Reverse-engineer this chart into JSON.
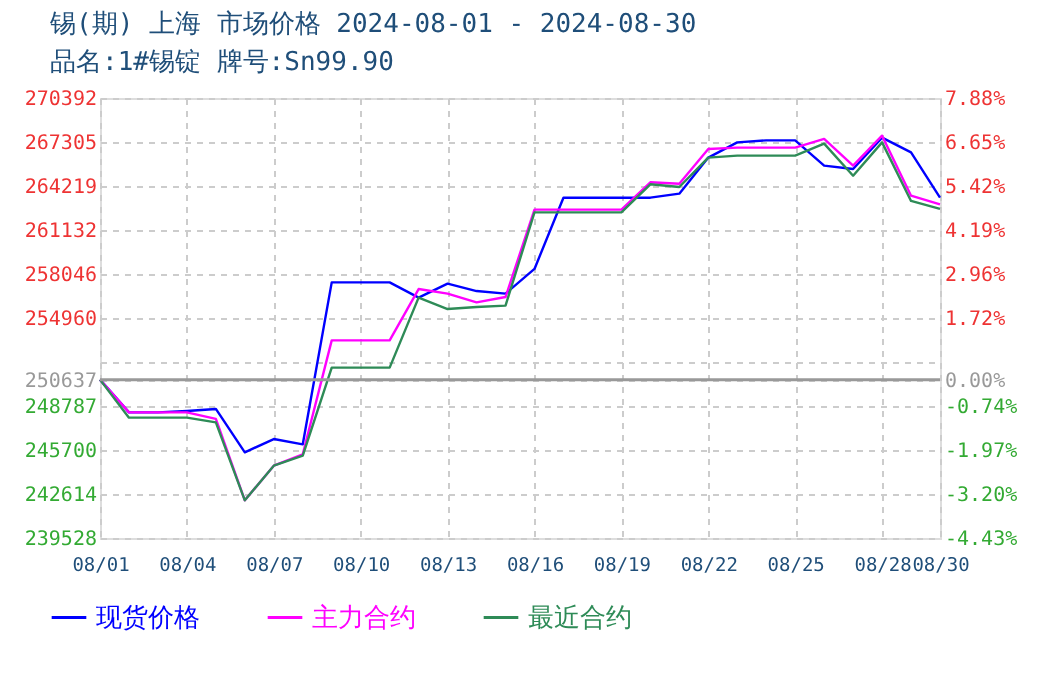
{
  "chart_data": {
    "type": "line",
    "title": "锡(期) 上海 市场价格 2024-08-01 - 2024-08-30",
    "subtitle": "品名:1#锡锭 牌号:Sn99.90",
    "x": [
      "2024-08-01",
      "2024-08-02",
      "2024-08-03",
      "2024-08-04",
      "2024-08-05",
      "2024-08-06",
      "2024-08-07",
      "2024-08-08",
      "2024-08-09",
      "2024-08-10",
      "2024-08-11",
      "2024-08-12",
      "2024-08-13",
      "2024-08-14",
      "2024-08-15",
      "2024-08-16",
      "2024-08-17",
      "2024-08-18",
      "2024-08-19",
      "2024-08-20",
      "2024-08-21",
      "2024-08-22",
      "2024-08-23",
      "2024-08-24",
      "2024-08-25",
      "2024-08-26",
      "2024-08-27",
      "2024-08-28",
      "2024-08-29",
      "2024-08-30"
    ],
    "series": [
      {
        "name": "现货价格",
        "color": "#0000ff",
        "values": [
          250637,
          248340,
          248340,
          248440,
          248580,
          245540,
          246470,
          246100,
          257460,
          257460,
          257460,
          256390,
          257370,
          256850,
          256670,
          258400,
          263400,
          263400,
          263400,
          263400,
          263680,
          266210,
          267280,
          267420,
          267420,
          265650,
          265410,
          267610,
          266580,
          263400
        ]
      },
      {
        "name": "主力合约",
        "color": "#ff00ff",
        "values": [
          250637,
          248340,
          248340,
          248340,
          247880,
          242170,
          244600,
          245400,
          253390,
          253390,
          253390,
          256990,
          256670,
          256060,
          256430,
          262560,
          262560,
          262560,
          262560,
          264480,
          264380,
          266810,
          266910,
          266910,
          266910,
          267520,
          265650,
          267750,
          263540,
          262930
        ]
      },
      {
        "name": "最近合约",
        "color": "#2e8b57",
        "values": [
          250637,
          247970,
          247970,
          247970,
          247640,
          242170,
          244600,
          245300,
          251480,
          251480,
          251480,
          256390,
          255590,
          255730,
          255830,
          262370,
          262370,
          262370,
          262370,
          264340,
          264150,
          266210,
          266350,
          266350,
          266350,
          267190,
          264940,
          267280,
          263170,
          262610
        ]
      }
    ],
    "xlim": [
      "2024-08-01",
      "2024-08-30"
    ],
    "xticks": [
      {
        "value": "2024-08-01",
        "label": "08/01"
      },
      {
        "value": "2024-08-04",
        "label": "08/04"
      },
      {
        "value": "2024-08-07",
        "label": "08/07"
      },
      {
        "value": "2024-08-10",
        "label": "08/10"
      },
      {
        "value": "2024-08-13",
        "label": "08/13"
      },
      {
        "value": "2024-08-16",
        "label": "08/16"
      },
      {
        "value": "2024-08-19",
        "label": "08/19"
      },
      {
        "value": "2024-08-22",
        "label": "08/22"
      },
      {
        "value": "2024-08-25",
        "label": "08/25"
      },
      {
        "value": "2024-08-28",
        "label": "08/28"
      },
      {
        "value": "2024-08-30",
        "label": "08/30"
      }
    ],
    "ylim": [
      239528,
      270392
    ],
    "yticks": [
      270392,
      267305,
      264219,
      261132,
      258046,
      254960,
      {
        "value": 251874,
        "label": null
      },
      250637,
      248787,
      245700,
      242614,
      239528
    ],
    "y2lim": [
      -4.43,
      7.88
    ],
    "y2ticks": [
      {
        "value": 7.88,
        "label": "7.88%"
      },
      {
        "value": 6.65,
        "label": "6.65%"
      },
      {
        "value": 5.42,
        "label": "5.42%"
      },
      {
        "value": 4.19,
        "label": "4.19%"
      },
      {
        "value": 2.96,
        "label": "2.96%"
      },
      {
        "value": 1.72,
        "label": "1.72%"
      },
      {
        "value": 0,
        "label": "0.00%"
      },
      {
        "value": -0.74,
        "label": "-0.74%"
      },
      {
        "value": -1.97,
        "label": "-1.97%"
      },
      {
        "value": -3.2,
        "label": "-3.20%"
      },
      {
        "value": -4.43,
        "label": "-4.43%"
      }
    ],
    "ref_lines": [
      {
        "axis": "y",
        "value": 250637,
        "color": "#999999",
        "line_style": "solid"
      }
    ],
    "grid": true,
    "legend": "bottom",
    "marker": "none",
    "line_style": "solid"
  }
}
